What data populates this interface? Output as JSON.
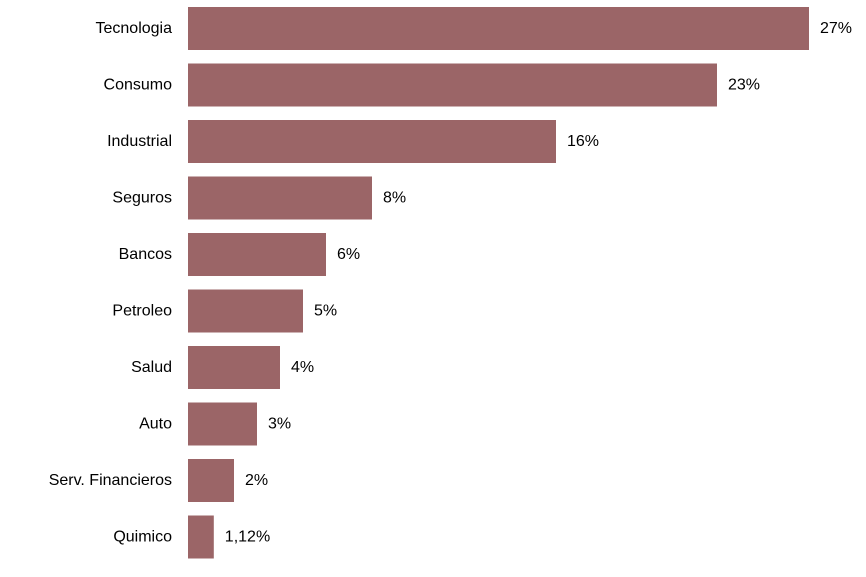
{
  "chart_data": {
    "type": "bar",
    "orientation": "horizontal",
    "categories": [
      "Tecnologia",
      "Consumo",
      "Industrial",
      "Seguros",
      "Bancos",
      "Petroleo",
      "Salud",
      "Auto",
      "Serv. Financieros",
      "Quimico"
    ],
    "values": [
      27,
      23,
      16,
      8,
      6,
      5,
      4,
      3,
      2,
      1.12
    ],
    "value_labels": [
      "27%",
      "23%",
      "16%",
      "8%",
      "6%",
      "5%",
      "4%",
      "3%",
      "2%",
      "1,12%"
    ],
    "title": "",
    "xlabel": "",
    "ylabel": "",
    "xlim": [
      0,
      27
    ],
    "grid": false,
    "legend": "none",
    "bar_color": "#9b6567"
  }
}
